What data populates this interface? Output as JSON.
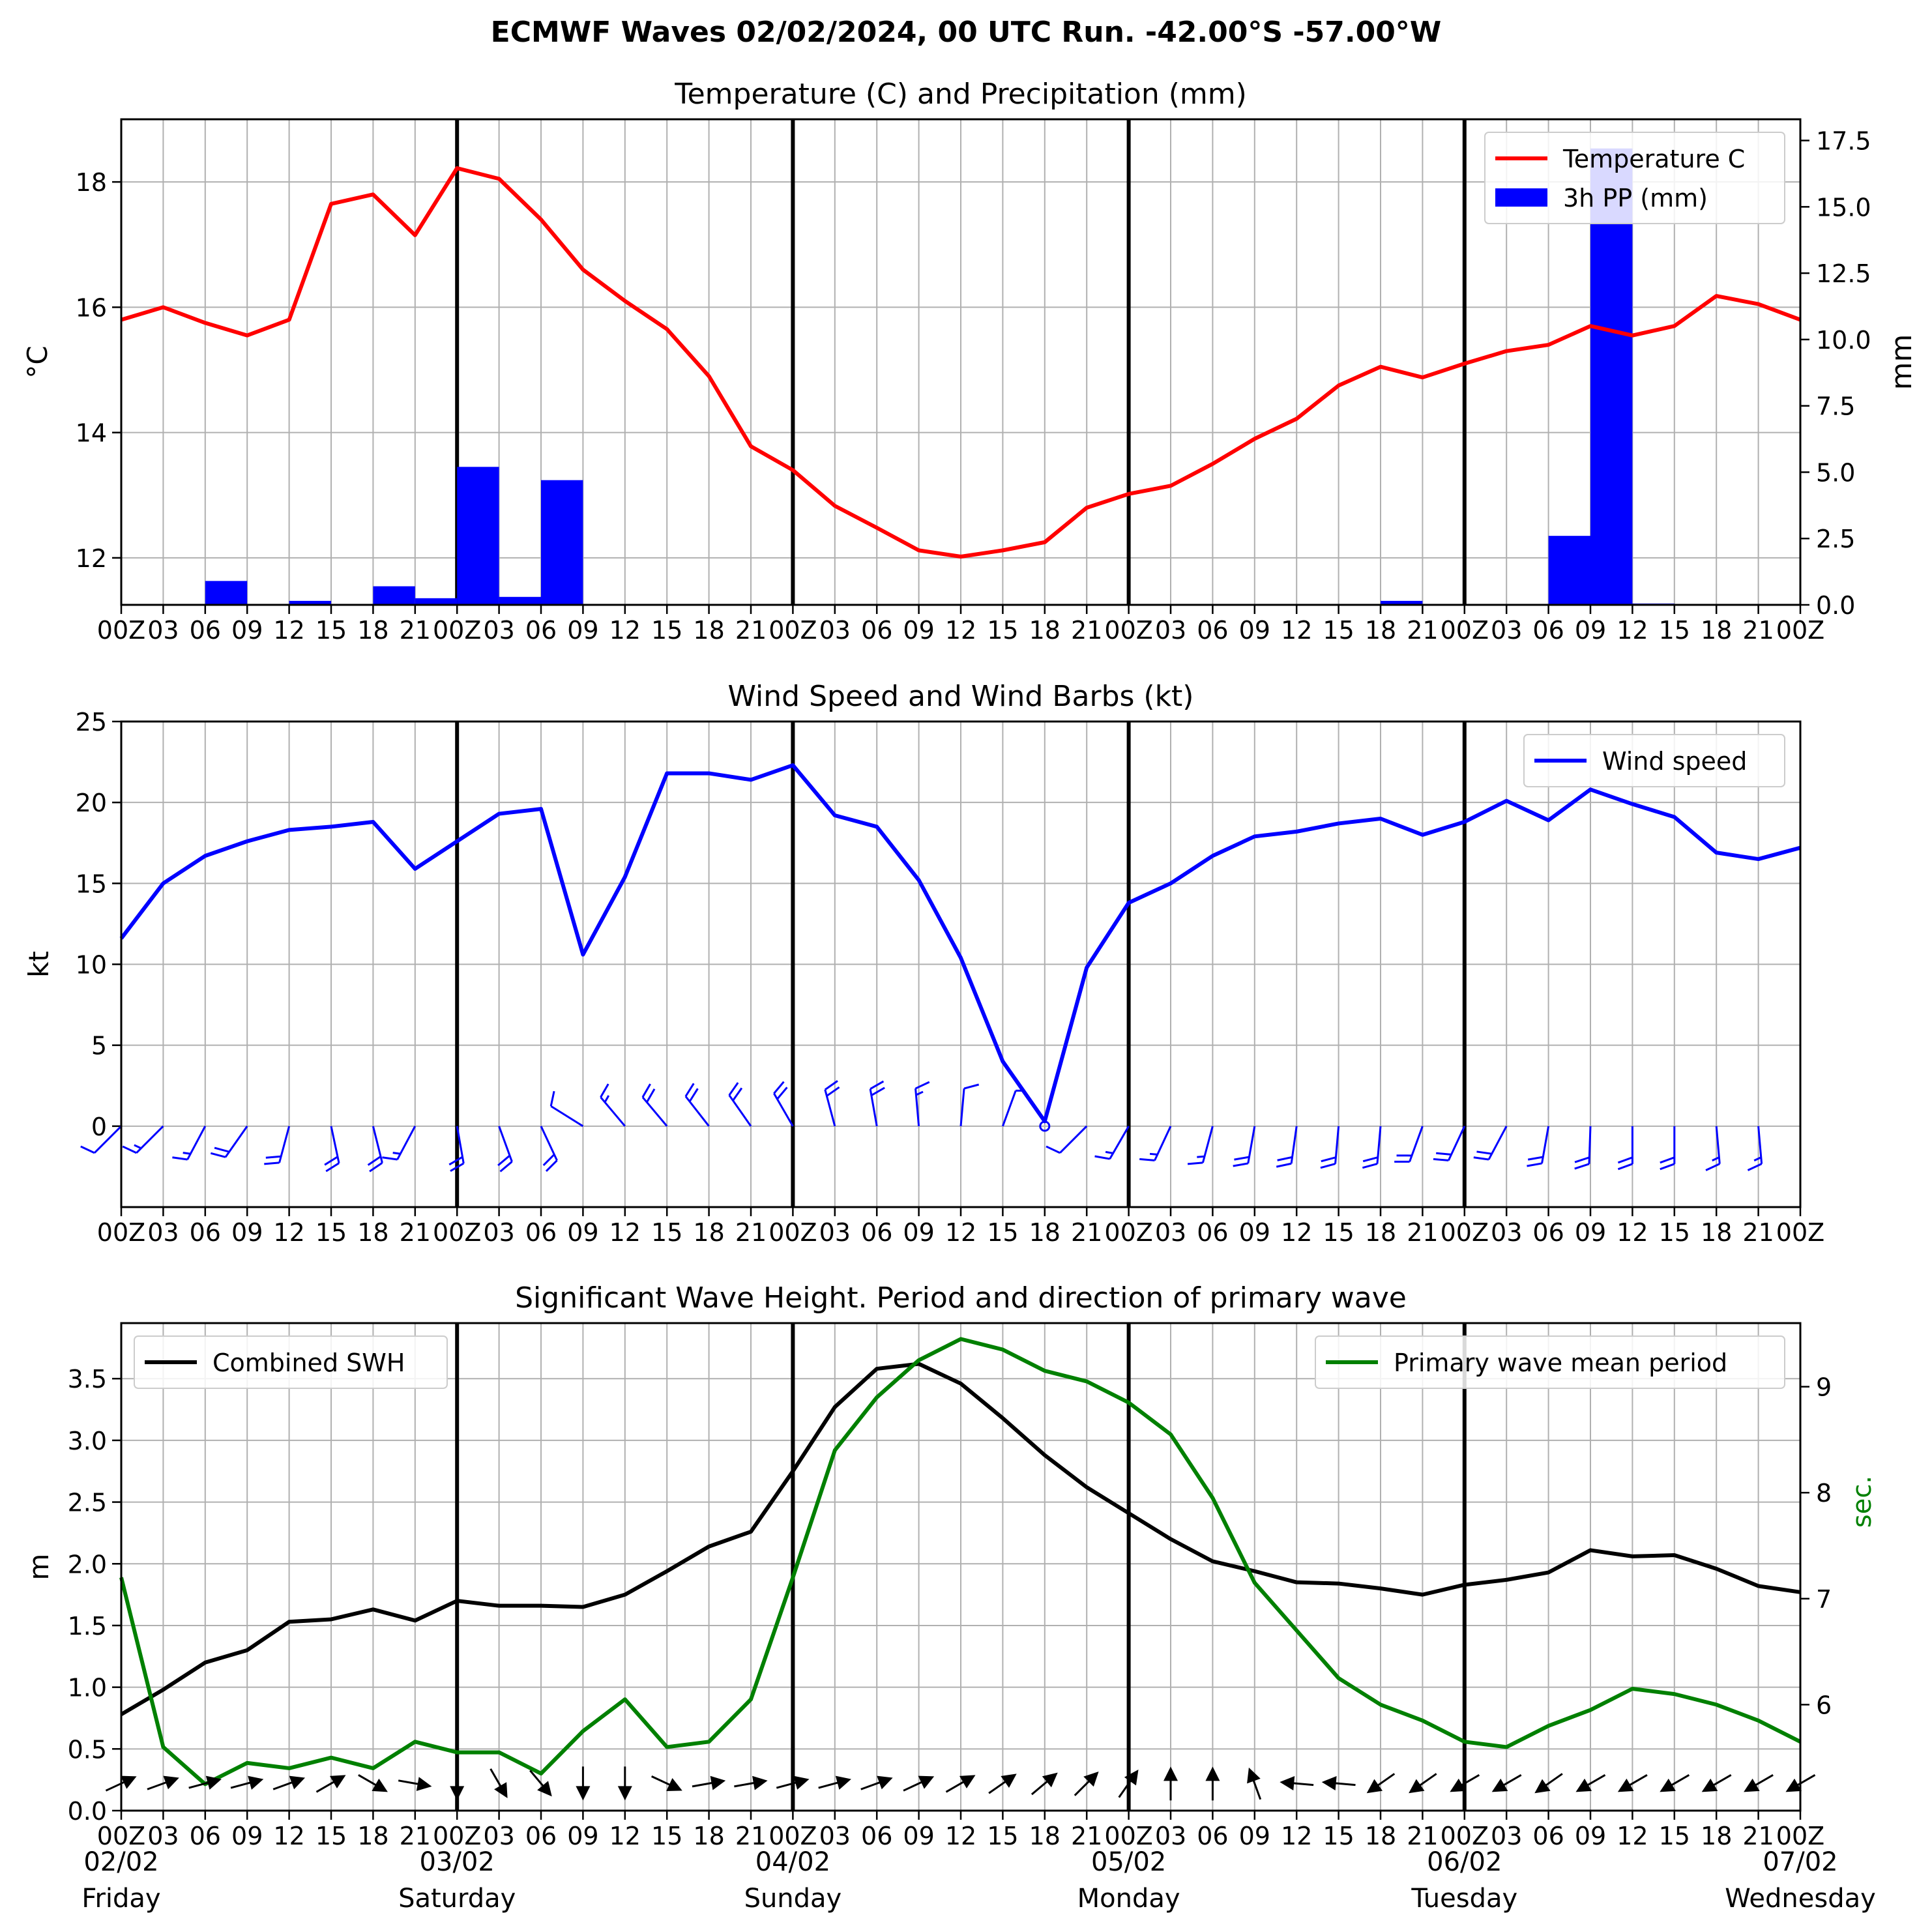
{
  "suptitle": "ECMWF Waves 02/02/2024, 00 UTC Run. -42.00°S -57.00°W",
  "hour_tick_labels": [
    "00Z",
    "03",
    "06",
    "09",
    "12",
    "15",
    "18",
    "21",
    "00Z",
    "03",
    "06",
    "09",
    "12",
    "15",
    "18",
    "21",
    "00Z",
    "03",
    "06",
    "09",
    "12",
    "15",
    "18",
    "21",
    "00Z",
    "03",
    "06",
    "09",
    "12",
    "15",
    "18",
    "21",
    "00Z",
    "03",
    "06",
    "09",
    "12",
    "15",
    "18",
    "21",
    "00Z"
  ],
  "day_labels": [
    {
      "date": "02/02",
      "day": "Friday",
      "hour": 0
    },
    {
      "date": "03/02",
      "day": "Saturday",
      "hour": 24
    },
    {
      "date": "04/02",
      "day": "Sunday",
      "hour": 48
    },
    {
      "date": "05/02",
      "day": "Monday",
      "hour": 72
    },
    {
      "date": "06/02",
      "day": "Tuesday",
      "hour": 96
    },
    {
      "date": "07/02",
      "day": "Wednesday",
      "hour": 120
    }
  ],
  "colors": {
    "temperature": "#ff0000",
    "precip": "#0000ff",
    "wind": "#0000ff",
    "swh": "#000000",
    "period": "#008000",
    "arrows": "#000000",
    "grid": "#b0b0b0"
  },
  "chart_data": [
    {
      "type": "line",
      "title": "Temperature (C) and Precipitation (mm)",
      "x_hours": [
        0,
        3,
        6,
        9,
        12,
        15,
        18,
        21,
        24,
        27,
        30,
        33,
        36,
        39,
        42,
        45,
        48,
        51,
        54,
        57,
        60,
        63,
        66,
        69,
        72,
        75,
        78,
        81,
        84,
        87,
        90,
        93,
        96,
        99,
        102,
        105,
        108,
        111,
        114,
        117,
        120
      ],
      "xlim": [
        0,
        120
      ],
      "grid": true,
      "ylabel": "$^\\circ$C",
      "ylim": [
        11.25,
        19.0
      ],
      "yticks": [
        12,
        14,
        16,
        18
      ],
      "y2label": "mm",
      "y2lim": [
        0,
        18.3
      ],
      "y2ticks": [
        "0.0",
        "2.5",
        "5.0",
        "7.5",
        "10.0",
        "12.5",
        "15.0",
        "17.5"
      ],
      "legend_position": "upper-right",
      "series": [
        {
          "name": "Temperature C",
          "kind": "line",
          "axis": "left",
          "values": [
            15.8,
            16.0,
            15.75,
            15.55,
            15.8,
            17.65,
            17.8,
            17.15,
            18.22,
            18.05,
            17.4,
            16.6,
            16.1,
            15.65,
            14.9,
            13.78,
            13.4,
            12.83,
            12.48,
            12.12,
            12.02,
            12.12,
            12.25,
            12.8,
            13.02,
            13.15,
            13.5,
            13.9,
            14.22,
            14.75,
            15.05,
            14.88,
            15.1,
            15.3,
            15.4,
            15.7,
            15.55,
            15.7,
            16.18,
            16.05,
            15.8
          ]
        },
        {
          "name": "3h PP (mm)",
          "kind": "bar",
          "axis": "right",
          "values": [
            0,
            0,
            0.9,
            0,
            0.15,
            0,
            0.7,
            0.25,
            5.2,
            0.3,
            4.7,
            0,
            0,
            0,
            0,
            0,
            0,
            0,
            0,
            0,
            0,
            0,
            0,
            0,
            0,
            0,
            0,
            0,
            0,
            0,
            0.15,
            0,
            0,
            0,
            2.6,
            17.2,
            0.05,
            0,
            0,
            0
          ]
        }
      ]
    },
    {
      "type": "line",
      "title": "Wind Speed and Wind Barbs (kt)",
      "x_hours": [
        0,
        3,
        6,
        9,
        12,
        15,
        18,
        21,
        24,
        27,
        30,
        33,
        36,
        39,
        42,
        45,
        48,
        51,
        54,
        57,
        60,
        63,
        66,
        69,
        72,
        75,
        78,
        81,
        84,
        87,
        90,
        93,
        96,
        99,
        102,
        105,
        108,
        111,
        114,
        117,
        120
      ],
      "xlim": [
        0,
        120
      ],
      "grid": true,
      "ylabel": "kt",
      "ylim": [
        -5,
        25
      ],
      "yticks": [
        0,
        5,
        10,
        15,
        20,
        25
      ],
      "legend_position": "upper-right",
      "series": [
        {
          "name": "Wind speed",
          "kind": "line",
          "values": [
            11.6,
            15,
            16.7,
            17.6,
            18.3,
            18.5,
            18.8,
            15.9,
            17.6,
            19.3,
            19.6,
            10.6,
            15.4,
            21.8,
            21.8,
            21.4,
            22.3,
            19.2,
            18.5,
            15.2,
            10.4,
            4,
            0.3,
            9.8,
            13.8,
            15,
            16.7,
            17.9,
            18.2,
            18.7,
            19,
            18,
            18.8,
            20.1,
            18.9,
            20.8,
            19.9,
            19.1,
            16.9,
            16.5,
            17.2
          ]
        }
      ],
      "barbs": {
        "baseline": 0,
        "hours": [
          0,
          3,
          6,
          9,
          12,
          15,
          18,
          21,
          24,
          27,
          30,
          33,
          36,
          39,
          42,
          45,
          48,
          51,
          54,
          57,
          60,
          63,
          66,
          69,
          72,
          75,
          78,
          81,
          84,
          87,
          90,
          93,
          96,
          99,
          102,
          105,
          108,
          111,
          114,
          117
        ],
        "direction_deg": [
          225,
          225,
          208,
          215,
          195,
          168,
          166,
          208,
          170,
          160,
          155,
          302,
          320,
          320,
          322,
          325,
          330,
          345,
          350,
          355,
          5,
          20,
          0,
          225,
          210,
          205,
          195,
          190,
          188,
          185,
          185,
          200,
          205,
          208,
          190,
          182,
          180,
          180,
          175,
          175
        ]
      }
    },
    {
      "type": "line",
      "title": "Significant Wave Height. Period and direction of primary wave",
      "x_hours": [
        0,
        3,
        6,
        9,
        12,
        15,
        18,
        21,
        24,
        27,
        30,
        33,
        36,
        39,
        42,
        45,
        48,
        51,
        54,
        57,
        60,
        63,
        66,
        69,
        72,
        75,
        78,
        81,
        84,
        87,
        90,
        93,
        96,
        99,
        102,
        105,
        108,
        111,
        114,
        117,
        120
      ],
      "xlim": [
        0,
        120
      ],
      "grid": true,
      "ylabel": "m",
      "ylim": [
        0.0,
        3.95
      ],
      "yticks": [
        "0.0",
        "0.5",
        "1.0",
        "1.5",
        "2.0",
        "2.5",
        "3.0",
        "3.5"
      ],
      "y2label": "sec.",
      "y2lim": [
        5.0,
        9.6
      ],
      "y2ticks": [
        6,
        7,
        8,
        9
      ],
      "series": [
        {
          "name": "Combined SWH",
          "kind": "line",
          "axis": "left",
          "legend_position": "upper-left",
          "values": [
            0.78,
            0.98,
            1.2,
            1.3,
            1.53,
            1.55,
            1.63,
            1.54,
            1.7,
            1.66,
            1.66,
            1.65,
            1.75,
            1.94,
            2.14,
            2.26,
            2.75,
            3.27,
            3.58,
            3.62,
            3.46,
            3.18,
            2.88,
            2.62,
            2.41,
            2.2,
            2.02,
            1.94,
            1.85,
            1.84,
            1.8,
            1.75,
            1.83,
            1.87,
            1.93,
            2.11,
            2.06,
            2.07,
            1.96,
            1.82,
            1.77
          ]
        },
        {
          "name": "Primary wave mean period",
          "kind": "line",
          "axis": "right",
          "legend_position": "upper-right",
          "values": [
            7.2,
            5.6,
            5.25,
            5.45,
            5.4,
            5.5,
            5.4,
            5.65,
            5.55,
            5.55,
            5.35,
            5.75,
            6.05,
            5.6,
            5.65,
            6.05,
            7.2,
            8.4,
            8.9,
            9.25,
            9.45,
            9.35,
            9.15,
            9.05,
            8.85,
            8.55,
            7.95,
            7.15,
            6.7,
            6.25,
            6.0,
            5.85,
            5.65,
            5.6,
            5.8,
            5.95,
            6.15,
            6.1,
            6.0,
            5.85,
            5.65
          ]
        }
      ],
      "arrows": {
        "baseline": 0.22,
        "hours": [
          0,
          3,
          6,
          9,
          12,
          15,
          18,
          21,
          24,
          27,
          30,
          33,
          36,
          39,
          42,
          45,
          48,
          51,
          54,
          57,
          60,
          63,
          66,
          69,
          72,
          75,
          78,
          81,
          84,
          87,
          90,
          93,
          96,
          99,
          102,
          105,
          108,
          111,
          114,
          117,
          120
        ],
        "direction_deg": [
          65,
          70,
          75,
          75,
          70,
          60,
          120,
          100,
          180,
          150,
          140,
          180,
          180,
          115,
          80,
          80,
          75,
          75,
          70,
          65,
          60,
          55,
          50,
          45,
          35,
          0,
          0,
          340,
          275,
          275,
          235,
          235,
          240,
          240,
          235,
          240,
          240,
          240,
          240,
          240,
          240
        ]
      }
    }
  ]
}
